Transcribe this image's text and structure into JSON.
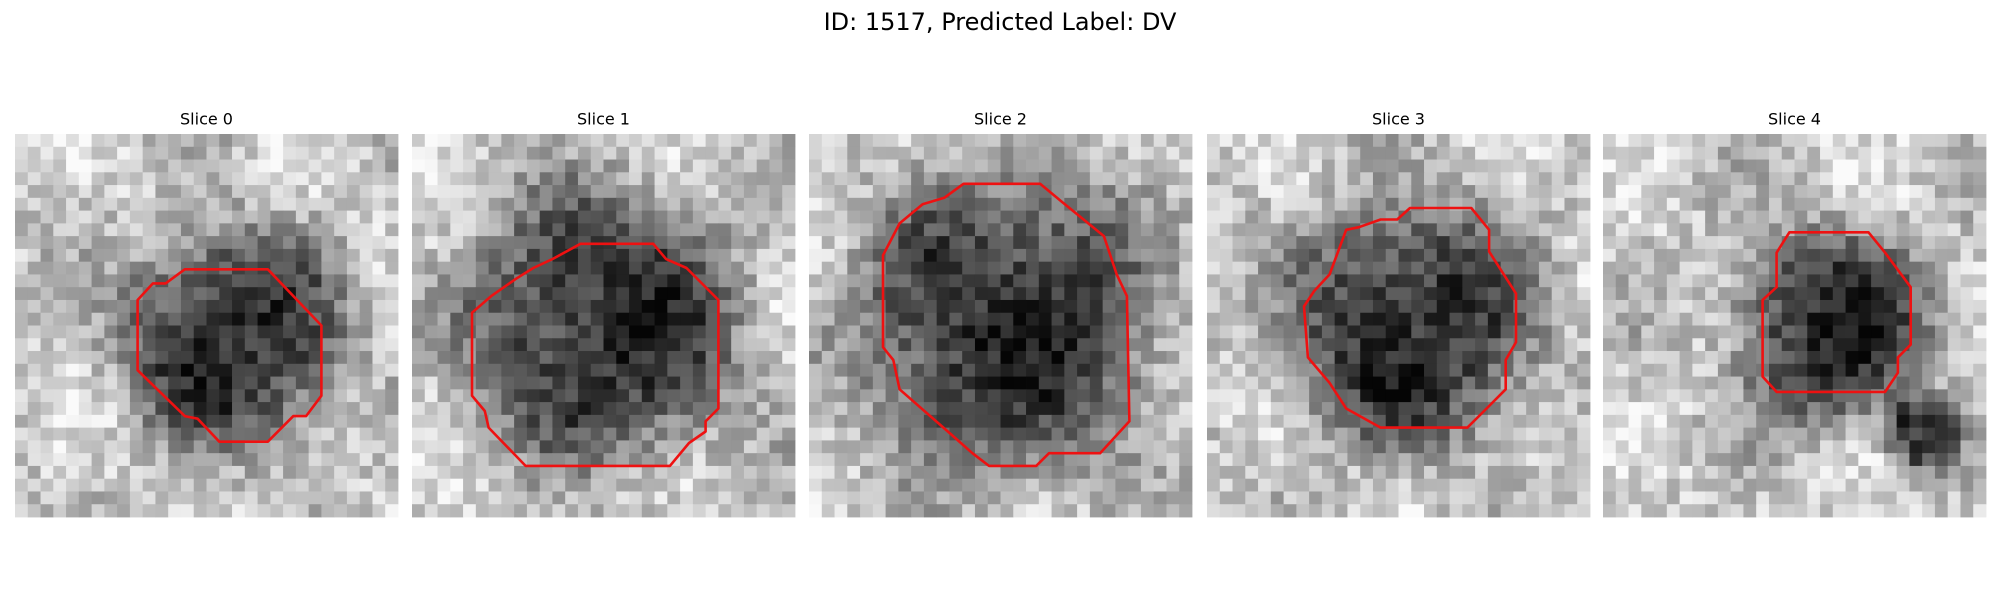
{
  "title": "ID: 1517, Predicted Label: DV",
  "panels": [
    {
      "title": "Slice 0"
    },
    {
      "title": "Slice 1"
    },
    {
      "title": "Slice 2"
    },
    {
      "title": "Slice 3"
    },
    {
      "title": "Slice 4"
    }
  ]
}
